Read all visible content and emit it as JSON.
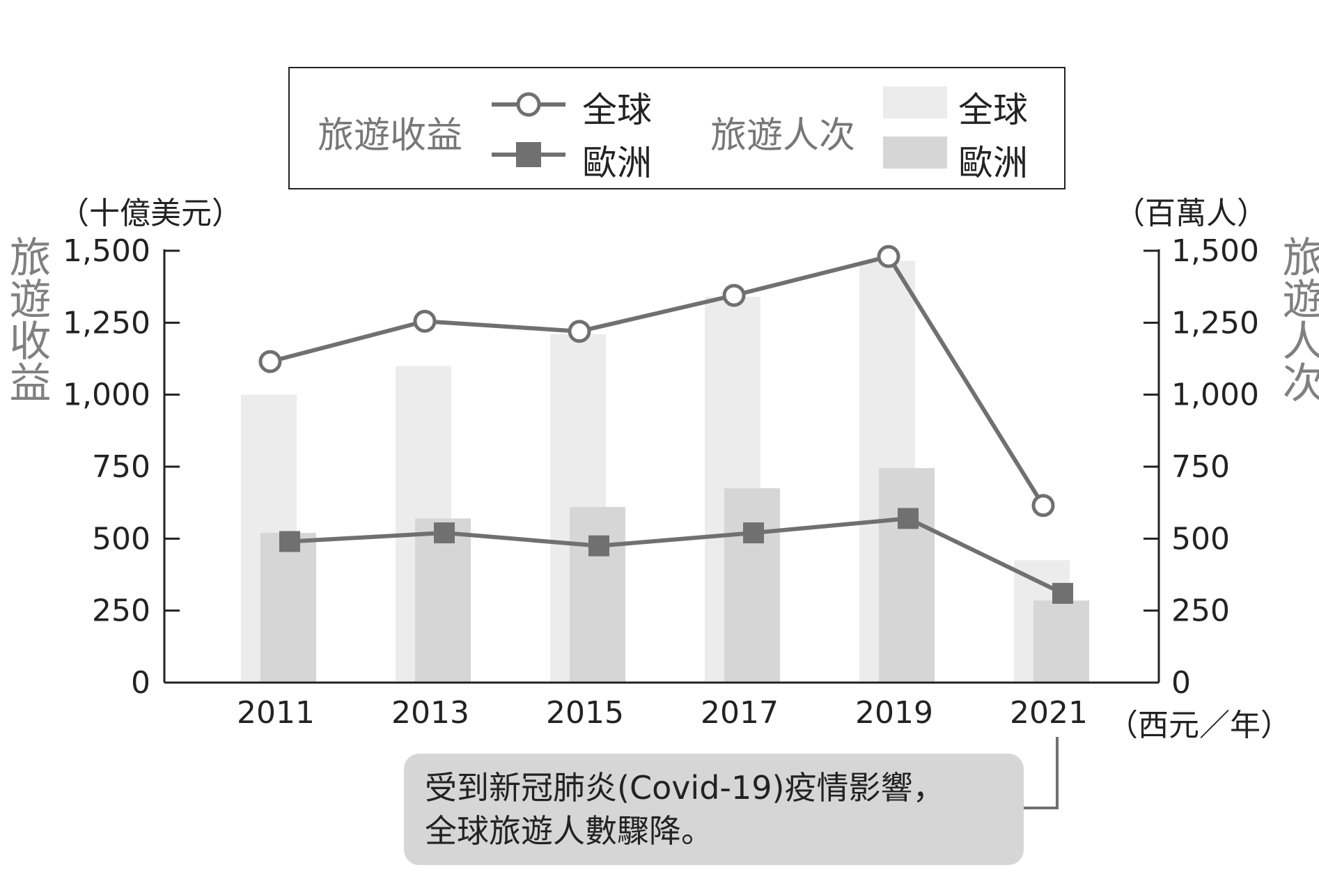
{
  "legend": {
    "revenue_title": "旅遊收益",
    "visitors_title": "旅遊人次",
    "global_label": "全球",
    "europe_label": "歐洲"
  },
  "axes": {
    "left_unit": "（十億美元）",
    "right_unit": "（百萬人）",
    "x_unit": "（西元／年）",
    "left_title": "旅遊收益",
    "right_title": "旅遊人次"
  },
  "annotation": {
    "line1": "受到新冠肺炎(Covid-19)疫情影響，",
    "line2": "全球旅遊人數驟降。"
  },
  "colors": {
    "line": "#707070",
    "bar_global": "#ececec",
    "bar_europe": "#d6d6d6",
    "axis": "#222222"
  },
  "chart_data": {
    "type": "bar+line",
    "categories": [
      "2011",
      "2013",
      "2015",
      "2017",
      "2019",
      "2021"
    ],
    "left_axis": {
      "label": "旅遊收益",
      "unit": "十億美元",
      "ylim": [
        0,
        1500
      ],
      "ticks": [
        0,
        250,
        500,
        750,
        1000,
        1250,
        1500
      ]
    },
    "right_axis": {
      "label": "旅遊人次",
      "unit": "百萬人",
      "ylim": [
        0,
        1500
      ],
      "ticks": [
        0,
        250,
        500,
        750,
        1000,
        1250,
        1500
      ]
    },
    "x_label": "西元／年",
    "series": [
      {
        "name": "旅遊人次 全球",
        "type": "bar",
        "axis": "right",
        "values": [
          1000,
          1100,
          1210,
          1340,
          1465,
          425
        ]
      },
      {
        "name": "旅遊人次 歐洲",
        "type": "bar",
        "axis": "right",
        "values": [
          520,
          570,
          610,
          675,
          745,
          285
        ]
      },
      {
        "name": "旅遊收益 全球",
        "type": "line",
        "marker": "circle",
        "axis": "left",
        "values": [
          1115,
          1255,
          1220,
          1345,
          1480,
          615
        ]
      },
      {
        "name": "旅遊收益 歐洲",
        "type": "line",
        "marker": "square",
        "axis": "left",
        "values": [
          490,
          520,
          475,
          520,
          570,
          310
        ]
      }
    ],
    "grid": false,
    "legend_position": "top"
  }
}
